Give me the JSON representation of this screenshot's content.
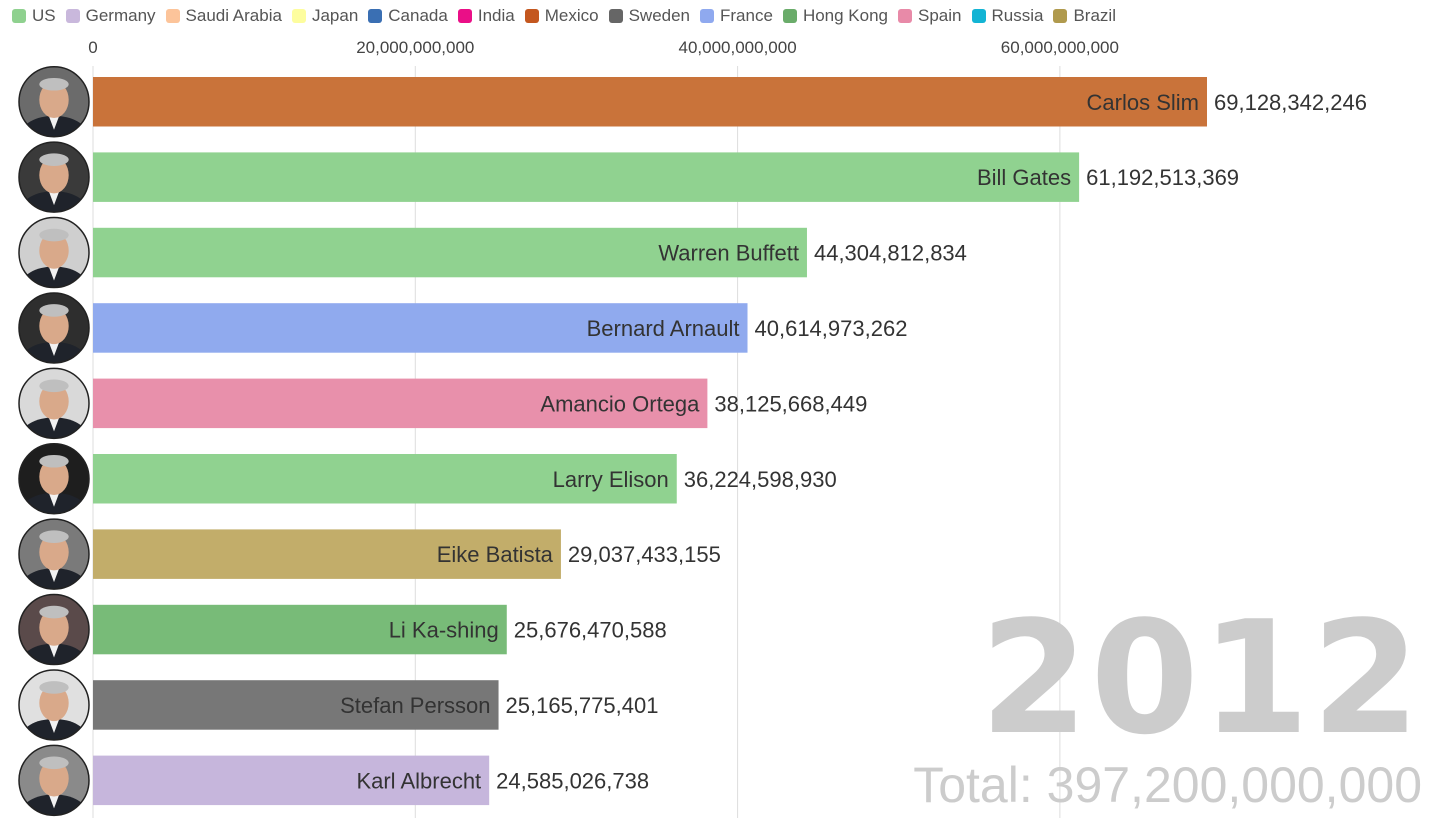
{
  "legend": [
    {
      "name": "US",
      "color": "#8fd18f",
      "icon": "legend-swatch"
    },
    {
      "name": "Germany",
      "color": "#c9b8dc",
      "icon": "legend-swatch"
    },
    {
      "name": "Saudi Arabia",
      "color": "#fcc49a",
      "icon": "legend-swatch"
    },
    {
      "name": "Japan",
      "color": "#fdfd9e",
      "icon": "legend-swatch"
    },
    {
      "name": "Canada",
      "color": "#3a6fb3",
      "icon": "legend-swatch"
    },
    {
      "name": "India",
      "color": "#ea0f87",
      "icon": "legend-swatch"
    },
    {
      "name": "Mexico",
      "color": "#c4571f",
      "icon": "legend-swatch"
    },
    {
      "name": "Sweden",
      "color": "#666666",
      "icon": "legend-swatch"
    },
    {
      "name": "France",
      "color": "#8fa9ef",
      "icon": "legend-swatch"
    },
    {
      "name": "Hong Kong",
      "color": "#6aac6a",
      "icon": "legend-swatch"
    },
    {
      "name": "Spain",
      "color": "#e88aa8",
      "icon": "legend-swatch"
    },
    {
      "name": "Russia",
      "color": "#13b4d4",
      "icon": "legend-swatch"
    },
    {
      "name": "Brazil",
      "color": "#b09a4d",
      "icon": "legend-swatch"
    }
  ],
  "year": "2012",
  "total_label": "Total: 397,200,000,000",
  "chart_data": {
    "type": "bar",
    "orientation": "horizontal",
    "xlim": [
      0,
      69128342246
    ],
    "ticks": [
      {
        "value": 0,
        "label": "0"
      },
      {
        "value": 20000000000,
        "label": "20,000,000,000"
      },
      {
        "value": 40000000000,
        "label": "40,000,000,000"
      },
      {
        "value": 60000000000,
        "label": "60,000,000,000"
      }
    ],
    "grid": true,
    "legend_position": "top",
    "bars": [
      {
        "name": "Carlos Slim",
        "value": 69128342246,
        "value_label": "69,128,342,246",
        "country": "Mexico",
        "color": "#c9733a",
        "avatar": "avatar-carlos-slim"
      },
      {
        "name": "Bill Gates",
        "value": 61192513369,
        "value_label": "61,192,513,369",
        "country": "US",
        "color": "#90d290",
        "avatar": "avatar-bill-gates"
      },
      {
        "name": "Warren Buffett",
        "value": 44304812834,
        "value_label": "44,304,812,834",
        "country": "US",
        "color": "#90d290",
        "avatar": "avatar-warren-buffett"
      },
      {
        "name": "Bernard Arnault",
        "value": 40614973262,
        "value_label": "40,614,973,262",
        "country": "France",
        "color": "#90aaee",
        "avatar": "avatar-bernard-arnault"
      },
      {
        "name": "Amancio Ortega",
        "value": 38125668449,
        "value_label": "38,125,668,449",
        "country": "Spain",
        "color": "#e890ab",
        "avatar": "avatar-amancio-ortega"
      },
      {
        "name": "Larry Elison",
        "value": 36224598930,
        "value_label": "36,224,598,930",
        "country": "US",
        "color": "#90d290",
        "avatar": "avatar-larry-elison"
      },
      {
        "name": "Eike Batista",
        "value": 29037433155,
        "value_label": "29,037,433,155",
        "country": "Brazil",
        "color": "#c2ad6a",
        "avatar": "avatar-eike-batista"
      },
      {
        "name": "Li Ka-shing",
        "value": 25676470588,
        "value_label": "25,676,470,588",
        "country": "Hong Kong",
        "color": "#78bb78",
        "avatar": "avatar-li-ka-shing"
      },
      {
        "name": "Stefan Persson",
        "value": 25165775401,
        "value_label": "25,165,775,401",
        "country": "Sweden",
        "color": "#777777",
        "avatar": "avatar-stefan-persson"
      },
      {
        "name": "Karl Albrecht",
        "value": 24585026738,
        "value_label": "24,585,026,738",
        "country": "Germany",
        "color": "#c6b6dc",
        "avatar": "avatar-karl-albrecht"
      }
    ]
  }
}
